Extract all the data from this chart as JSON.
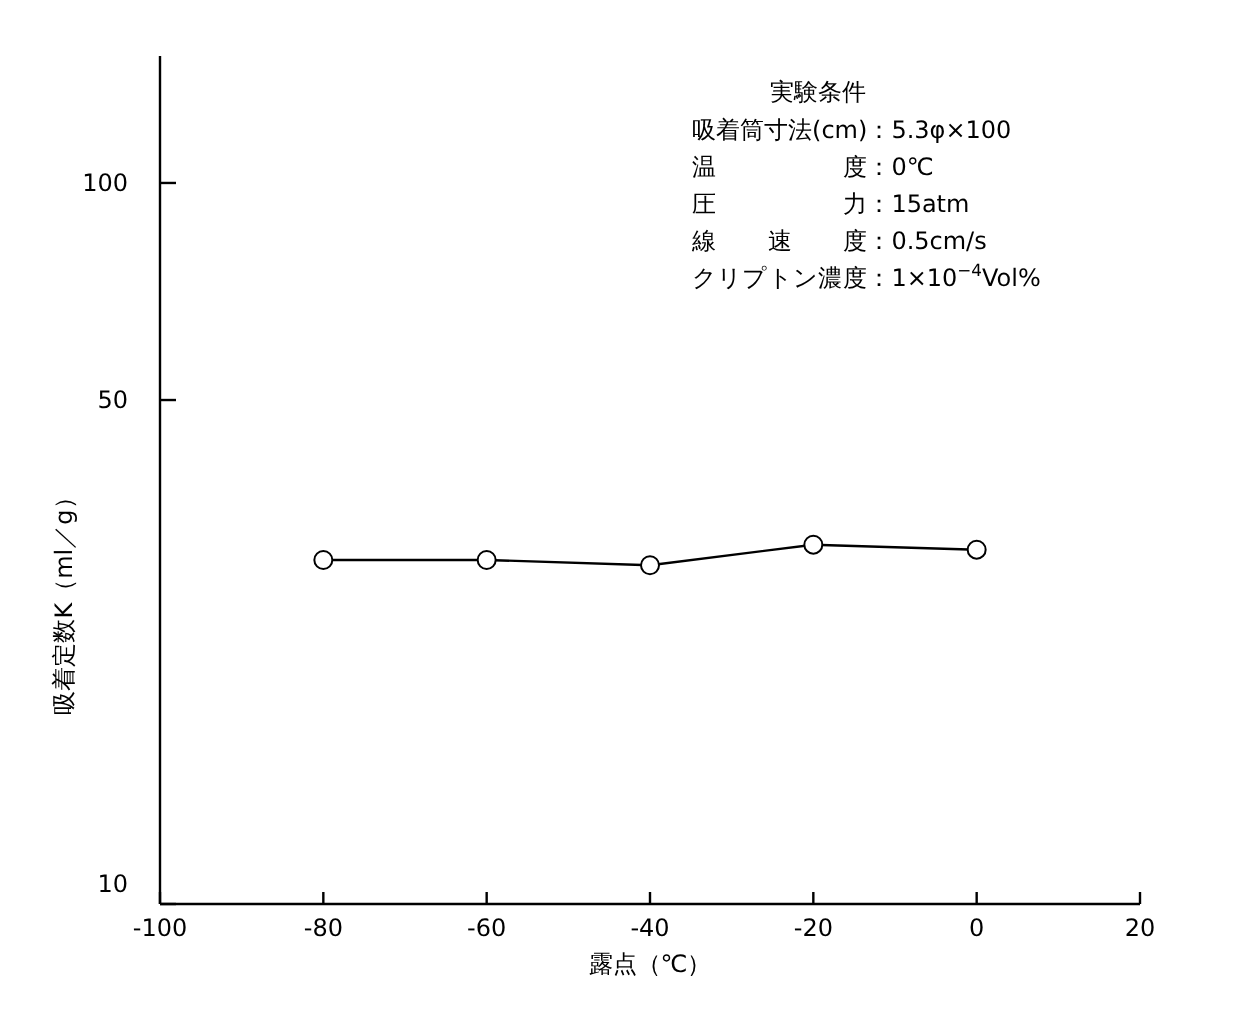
{
  "chart_data": {
    "type": "line",
    "xlabel": "露点（℃）",
    "ylabel": "吸着定数K（ml／g）",
    "x": [
      -80,
      -60,
      -40,
      -20,
      0
    ],
    "values": [
      30,
      30,
      29.5,
      31.5,
      31
    ],
    "color": "#000000",
    "marker": "circle",
    "line_style": "solid",
    "log": "y",
    "xlim": [
      -100,
      20
    ],
    "xticks": [
      -100,
      -80,
      -60,
      -40,
      -20,
      0,
      20
    ],
    "ylim": [
      10,
      150
    ],
    "yticks": [
      10,
      50,
      100
    ],
    "annotations": [
      "実験条件",
      "吸着筒寸法(cm)：5.3φ×100",
      "温度：0℃",
      "圧力：15atm",
      "線速度：0.5cm/s",
      "クリプトン濃度：1×10$^{−4}$Vol%"
    ]
  }
}
